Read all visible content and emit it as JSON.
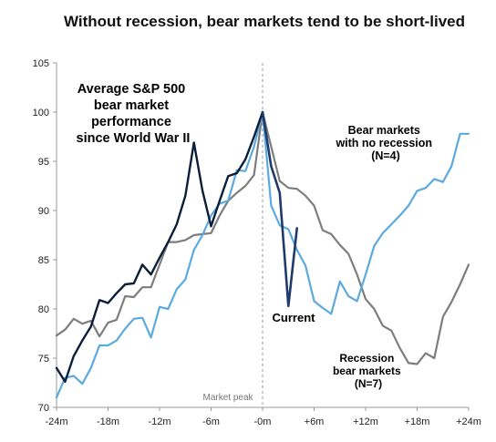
{
  "chart_data": {
    "type": "line",
    "title": "Without recession, bear markets tend to be short-lived",
    "xlabel": "",
    "ylabel": "",
    "xlim": [
      -24,
      24
    ],
    "ylim": [
      70,
      105
    ],
    "grid": false,
    "x_ticks": [
      {
        "value": -24,
        "label": "-24m"
      },
      {
        "value": -18,
        "label": "-18m"
      },
      {
        "value": -12,
        "label": "-12m"
      },
      {
        "value": -6,
        "label": "-6m"
      },
      {
        "value": 0,
        "label": "-0m"
      },
      {
        "value": 6,
        "label": "+6m"
      },
      {
        "value": 12,
        "label": "+12m"
      },
      {
        "value": 18,
        "label": "+18m"
      },
      {
        "value": 24,
        "label": "+24m"
      }
    ],
    "y_ticks": [
      70,
      75,
      80,
      85,
      90,
      95,
      100,
      105
    ],
    "peak_label": "Market peak",
    "annotations": [
      {
        "lines": [
          "Average S&P 500",
          "bear market",
          "performance",
          "since World War II"
        ],
        "color": "#0b1f3a"
      },
      {
        "lines": [
          "Bear markets",
          "with no recession",
          "(N=4)"
        ],
        "color": "#5aaadf"
      },
      {
        "lines": [
          "Current"
        ],
        "color": "#1f3a6b"
      },
      {
        "lines": [
          "Recession",
          "bear markets",
          "(N=7)"
        ],
        "color": "#777777"
      }
    ],
    "series": [
      {
        "key": "recession",
        "color": "#7d7d7d",
        "x": [
          -24,
          -23,
          -22,
          -21,
          -20,
          -19,
          -18,
          -17,
          -16,
          -15,
          -14,
          -13,
          -12,
          -11,
          -10,
          -9,
          -8,
          -7,
          -6,
          -5,
          -4,
          -3,
          -2,
          -1,
          0,
          1,
          2,
          3,
          4,
          5,
          6,
          7,
          8,
          9,
          10,
          11,
          12,
          13,
          14,
          15,
          16,
          17,
          18,
          19,
          20,
          21,
          22,
          23,
          24
        ],
        "y": [
          77.3,
          77.9,
          79.0,
          78.5,
          78.8,
          77.2,
          78.6,
          78.9,
          81.3,
          81.2,
          82.2,
          82.2,
          84.5,
          86.8,
          86.8,
          87.0,
          87.5,
          87.6,
          87.7,
          89.5,
          91.0,
          91.8,
          92.5,
          93.6,
          100.0,
          96.5,
          93.0,
          92.3,
          92.2,
          91.5,
          90.5,
          88.0,
          87.6,
          86.5,
          85.6,
          83.5,
          81.0,
          80.0,
          78.3,
          77.8,
          76.0,
          74.5,
          74.4,
          75.5,
          75.0,
          79.2,
          80.7,
          82.5,
          84.5
        ]
      },
      {
        "key": "no_recession",
        "color": "#5aaadf",
        "x": [
          -24,
          -23,
          -22,
          -21,
          -20,
          -19,
          -18,
          -17,
          -16,
          -15,
          -14,
          -13,
          -12,
          -11,
          -10,
          -9,
          -8,
          -7,
          -6,
          -5,
          -4,
          -3,
          -2,
          -1,
          0,
          1,
          2,
          3,
          4,
          5,
          6,
          7,
          8,
          9,
          10,
          11,
          12,
          13,
          14,
          15,
          16,
          17,
          18,
          19,
          20,
          21,
          22,
          23,
          24
        ],
        "y": [
          71.0,
          73.0,
          73.2,
          72.4,
          74.0,
          76.3,
          76.3,
          76.8,
          78.0,
          79.0,
          79.1,
          77.1,
          80.2,
          80.0,
          82.0,
          83.0,
          86.0,
          87.5,
          89.5,
          90.7,
          91.0,
          94.1,
          94.0,
          96.5,
          100.0,
          90.5,
          88.5,
          88.1,
          86.0,
          84.4,
          80.8,
          80.1,
          79.5,
          82.8,
          81.3,
          80.8,
          83.5,
          86.4,
          87.7,
          88.6,
          89.5,
          90.5,
          92.0,
          92.3,
          93.2,
          92.9,
          94.5,
          97.8,
          97.8
        ]
      },
      {
        "key": "average",
        "color": "#0b1f3a",
        "x": [
          -24,
          -23,
          -22,
          -21,
          -20,
          -19,
          -18,
          -17,
          -16,
          -15,
          -14,
          -13,
          -12,
          -11,
          -10,
          -9,
          -8,
          -7,
          -6,
          -5,
          -4,
          -3,
          -2,
          -1,
          0
        ],
        "y": [
          74.0,
          72.6,
          75.2,
          76.8,
          78.2,
          80.9,
          80.6,
          81.6,
          82.5,
          82.6,
          84.5,
          83.5,
          85.2,
          86.8,
          88.6,
          91.5,
          96.9,
          92.0,
          88.4,
          91.0,
          93.5,
          93.8,
          95.2,
          97.5,
          100.0
        ]
      },
      {
        "key": "current",
        "color": "#1f3a6b",
        "x": [
          0,
          1,
          2,
          3,
          4
        ],
        "y": [
          100.0,
          94.5,
          91.8,
          80.3,
          88.2
        ]
      }
    ]
  }
}
